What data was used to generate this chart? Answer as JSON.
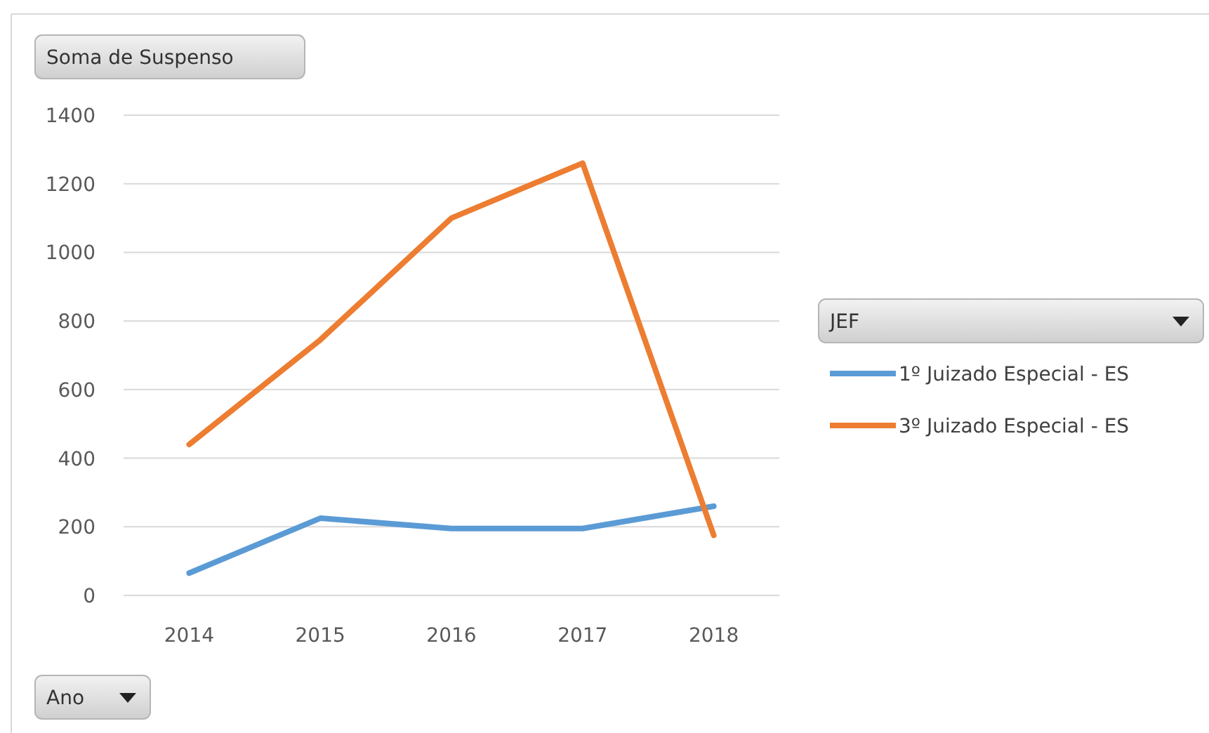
{
  "chart_data": {
    "type": "line",
    "title": "Soma de Suspenso",
    "xlabel": "Ano",
    "legend_title": "JEF",
    "categories": [
      "2014",
      "2015",
      "2016",
      "2017",
      "2018"
    ],
    "series": [
      {
        "name": "1º Juizado Especial - ES",
        "color": "#5b9bd5",
        "values": [
          65,
          225,
          195,
          195,
          260
        ]
      },
      {
        "name": "3º Juizado Especial - ES",
        "color": "#ed7d31",
        "values": [
          440,
          745,
          1100,
          1260,
          175
        ]
      }
    ],
    "ylim": [
      0,
      1400
    ],
    "yticks": [
      0,
      200,
      400,
      600,
      800,
      1000,
      1200,
      1400
    ],
    "grid": "y",
    "legend": "right",
    "marker": "none",
    "line_style": "solid"
  }
}
